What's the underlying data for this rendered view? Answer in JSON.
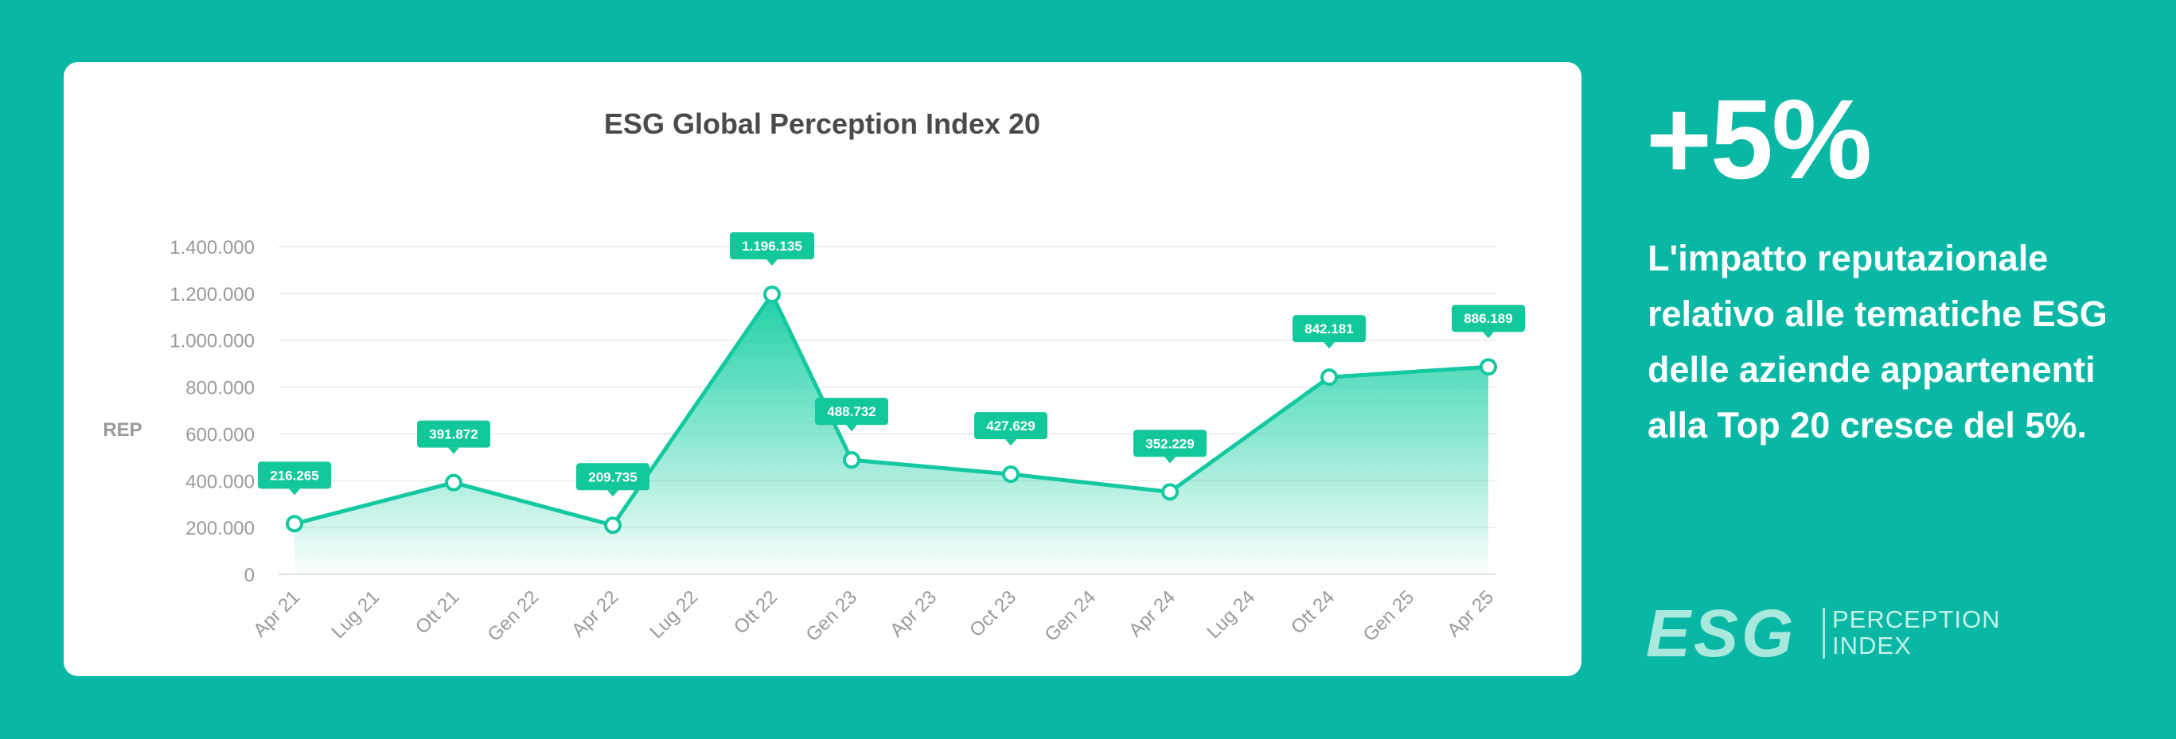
{
  "colors": {
    "background": "#08b8a5",
    "line": "#14c8a0",
    "label_bg": "#12c89a",
    "text_dark": "#4a4a4a",
    "axis_text": "#9a9a9a"
  },
  "chart_data": {
    "type": "area",
    "title": "ESG Global Perception Index 20",
    "ylabel": "REP",
    "xlabel": "",
    "ylim": [
      0,
      1400000
    ],
    "yticks": [
      0,
      200000,
      400000,
      600000,
      800000,
      1000000,
      1200000,
      1400000
    ],
    "ytick_labels": [
      "0",
      "200.000",
      "400.000",
      "600.000",
      "800.000",
      "1.000.000",
      "1.200.000",
      "1.400.000"
    ],
    "categories": [
      "Apr 21",
      "Lug 21",
      "Ott 21",
      "Gen 22",
      "Apr 22",
      "Lug 22",
      "Ott 22",
      "Gen 23",
      "Apr 23",
      "Oct 23",
      "Gen 24",
      "Apr 24",
      "Lug 24",
      "Ott 24",
      "Gen 25",
      "Apr 25"
    ],
    "points": [
      {
        "x": 0,
        "y": 216265,
        "label": "216.265"
      },
      {
        "x": 2,
        "y": 391872,
        "label": "391.872"
      },
      {
        "x": 4,
        "y": 209735,
        "label": "209.735"
      },
      {
        "x": 6,
        "y": 1196135,
        "label": "1.196.135"
      },
      {
        "x": 7,
        "y": 488732,
        "label": "488.732"
      },
      {
        "x": 9,
        "y": 427629,
        "label": "427.629"
      },
      {
        "x": 11,
        "y": 352229,
        "label": "352.229"
      },
      {
        "x": 13,
        "y": 842181,
        "label": "842.181"
      },
      {
        "x": 15,
        "y": 886189,
        "label": "886.189"
      }
    ],
    "grid": true,
    "legend": "none"
  },
  "side": {
    "headline": "+5%",
    "description": "L'impatto reputazionale relativo alle tematiche ESG delle aziende appartenenti alla Top 20 cresce del 5%."
  },
  "logo": {
    "mark": "ESG",
    "line1": "PERCEPTION",
    "line2": "INDEX"
  }
}
